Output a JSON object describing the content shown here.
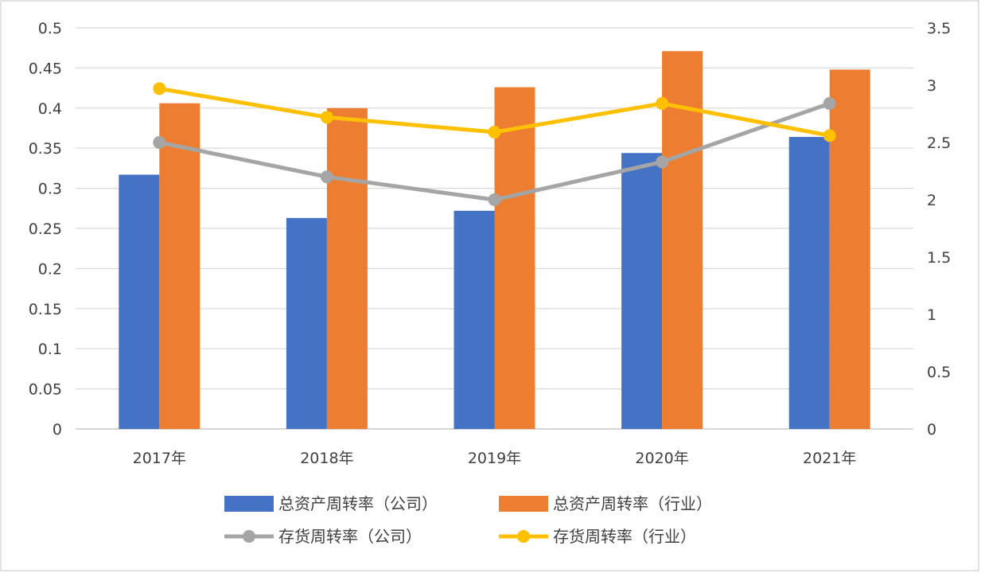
{
  "chart_data": {
    "type": "bar",
    "categories": [
      "2017年",
      "2018年",
      "2019年",
      "2020年",
      "2021年"
    ],
    "bar_series": [
      {
        "name": "总资产周转率（公司）",
        "values": [
          0.317,
          0.263,
          0.272,
          0.344,
          0.364
        ],
        "color": "#4472C4",
        "axis": "left"
      },
      {
        "name": "总资产周转率（行业）",
        "values": [
          0.406,
          0.4,
          0.426,
          0.471,
          0.448
        ],
        "color": "#ED7D31",
        "axis": "left"
      }
    ],
    "line_series": [
      {
        "name": "存货周转率（公司）",
        "values": [
          2.5,
          2.2,
          2.0,
          2.33,
          2.84
        ],
        "color": "#A5A5A5",
        "axis": "right"
      },
      {
        "name": "存货周转率（行业）",
        "values": [
          2.97,
          2.72,
          2.59,
          2.84,
          2.56
        ],
        "color": "#FFC000",
        "axis": "right"
      }
    ],
    "left_axis": {
      "ylim": [
        0,
        0.5
      ],
      "ticks": [
        "0",
        "0.05",
        "0.1",
        "0.15",
        "0.2",
        "0.25",
        "0.3",
        "0.35",
        "0.4",
        "0.45",
        "0.5"
      ]
    },
    "right_axis": {
      "ylim": [
        0,
        3.5
      ],
      "ticks": [
        "0",
        "0.5",
        "1",
        "1.5",
        "2",
        "2.5",
        "3",
        "3.5"
      ]
    },
    "grid": true,
    "legend_position": "bottom",
    "title": "",
    "xlabel": "",
    "ylabel": ""
  }
}
